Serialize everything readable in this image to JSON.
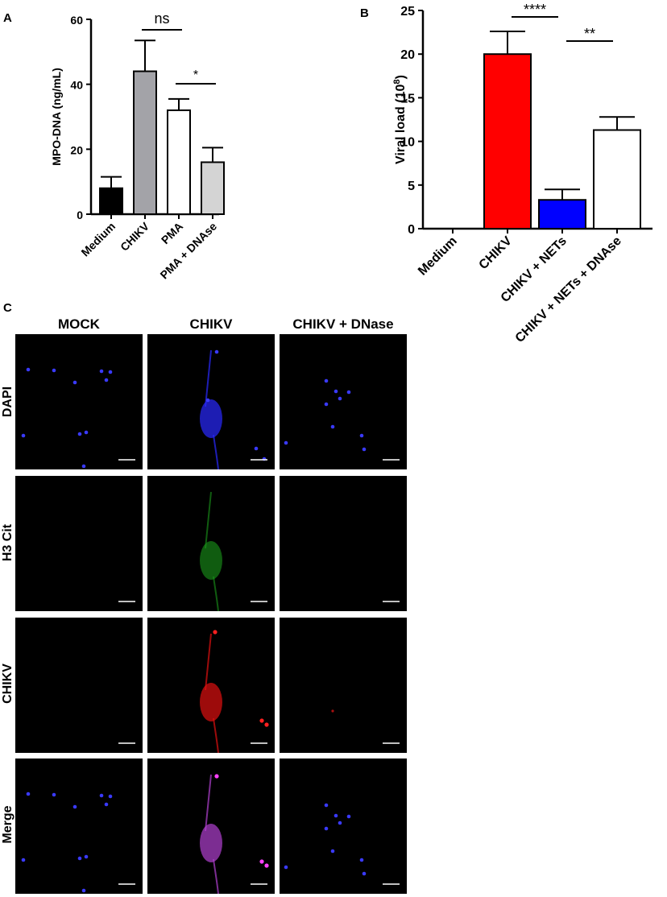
{
  "panels": {
    "a": "A",
    "b": "B",
    "c": "C"
  },
  "chart_data": [
    {
      "type": "bar",
      "panel": "A",
      "ylabel": "MPO-DNA  (ng/mL)",
      "ylim": [
        0,
        60
      ],
      "yticks": [
        "0",
        "20",
        "40",
        "60"
      ],
      "categories": [
        "Medium",
        "CHIKV",
        "PMA",
        "PMA + DNAse"
      ],
      "values": [
        8,
        44,
        32,
        16
      ],
      "errors": [
        3.5,
        9.5,
        3.5,
        4.5
      ],
      "colors": [
        "#000000",
        "#a3a3a8",
        "#ffffff",
        "#d4d4d4"
      ],
      "significance": [
        {
          "from": 1,
          "to": 2,
          "label": "ns"
        },
        {
          "from": 2,
          "to": 3,
          "label": "*"
        }
      ]
    },
    {
      "type": "bar",
      "panel": "B",
      "ylabel": "Viral load (10",
      "ylabel_sup": "8",
      "ylabel_end": ")",
      "ylim": [
        0,
        25
      ],
      "yticks": [
        "0",
        "5",
        "10",
        "15",
        "20",
        "25"
      ],
      "categories": [
        "Medium",
        "CHIKV",
        "CHIKV + NETs",
        "CHIKV + NETs + DNAse"
      ],
      "values": [
        0,
        20,
        3.3,
        11.3
      ],
      "errors": [
        0,
        2.6,
        1.2,
        1.5
      ],
      "colors": [
        "#000000",
        "#ff0000",
        "#0000ff",
        "#ffffff"
      ],
      "significance": [
        {
          "from": 1,
          "to": 2,
          "label": "****"
        },
        {
          "from": 2,
          "to": 3,
          "label": "**"
        }
      ]
    }
  ],
  "microscopy": {
    "columns": [
      "MOCK",
      "CHIKV",
      "CHIKV + DNase"
    ],
    "rows": [
      "DAPI",
      "H3 Cit",
      "CHIKV",
      "Merge"
    ]
  }
}
